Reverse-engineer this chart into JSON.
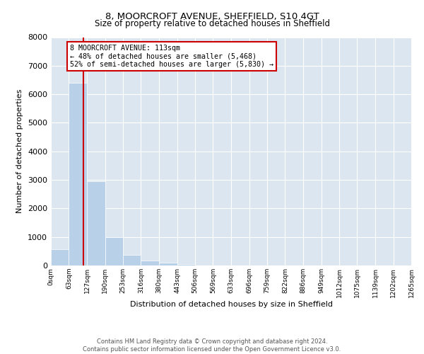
{
  "title": "8, MOORCROFT AVENUE, SHEFFIELD, S10 4GT",
  "subtitle": "Size of property relative to detached houses in Sheffield",
  "xlabel": "Distribution of detached houses by size in Sheffield",
  "ylabel": "Number of detached properties",
  "bin_edges": [
    0,
    63,
    127,
    190,
    253,
    316,
    380,
    443,
    506,
    569,
    633,
    696,
    759,
    822,
    886,
    949,
    1012,
    1075,
    1139,
    1202,
    1265
  ],
  "bin_labels": [
    "0sqm",
    "63sqm",
    "127sqm",
    "190sqm",
    "253sqm",
    "316sqm",
    "380sqm",
    "443sqm",
    "506sqm",
    "569sqm",
    "633sqm",
    "696sqm",
    "759sqm",
    "822sqm",
    "886sqm",
    "949sqm",
    "1012sqm",
    "1075sqm",
    "1139sqm",
    "1202sqm",
    "1265sqm"
  ],
  "bar_heights": [
    560,
    6400,
    2950,
    980,
    380,
    175,
    95,
    55,
    0,
    0,
    0,
    0,
    0,
    0,
    0,
    0,
    0,
    0,
    0,
    0
  ],
  "bar_color": "#b8d0e8",
  "property_line_x": 113,
  "property_line_color": "#cc0000",
  "ylim": [
    0,
    8000
  ],
  "yticks": [
    0,
    1000,
    2000,
    3000,
    4000,
    5000,
    6000,
    7000,
    8000
  ],
  "annotation_title": "8 MOORCROFT AVENUE: 113sqm",
  "annotation_line1": "← 48% of detached houses are smaller (5,468)",
  "annotation_line2": "52% of semi-detached houses are larger (5,830) →",
  "annotation_box_color": "#cc0000",
  "footer_line1": "Contains HM Land Registry data © Crown copyright and database right 2024.",
  "footer_line2": "Contains public sector information licensed under the Open Government Licence v3.0.",
  "fig_bg_color": "#ffffff",
  "plot_bg_color": "#dce6f0"
}
